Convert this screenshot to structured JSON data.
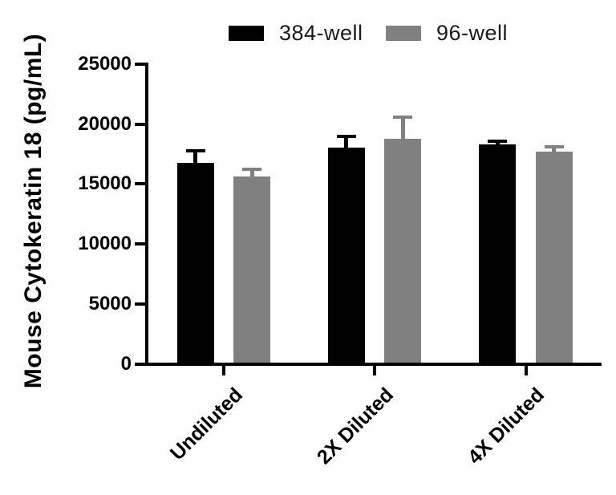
{
  "figure": {
    "background": "#ffffff"
  },
  "legend": {
    "items": [
      {
        "label": "384-well",
        "color": "#000000"
      },
      {
        "label": "96-well",
        "color": "#808080"
      }
    ]
  },
  "chart_data": {
    "type": "bar",
    "title": "",
    "ylabel": "Mouse Cytokeratin 18 (pg/mL)",
    "xlabel": "",
    "ylim": [
      0,
      25000
    ],
    "yticks": [
      0,
      5000,
      10000,
      15000,
      20000,
      25000
    ],
    "grid": false,
    "legend_position": "top",
    "error_bars": "upper-only",
    "categories": [
      "Undiluted",
      "2X Diluted",
      "4X Diluted"
    ],
    "series": [
      {
        "name": "384-well",
        "color": "#000000",
        "values": [
          16750,
          18050,
          18300
        ],
        "errors": [
          1050,
          950,
          250
        ]
      },
      {
        "name": "96-well",
        "color": "#808080",
        "values": [
          15650,
          18800,
          17700
        ],
        "errors": [
          550,
          1800,
          400
        ]
      }
    ]
  }
}
